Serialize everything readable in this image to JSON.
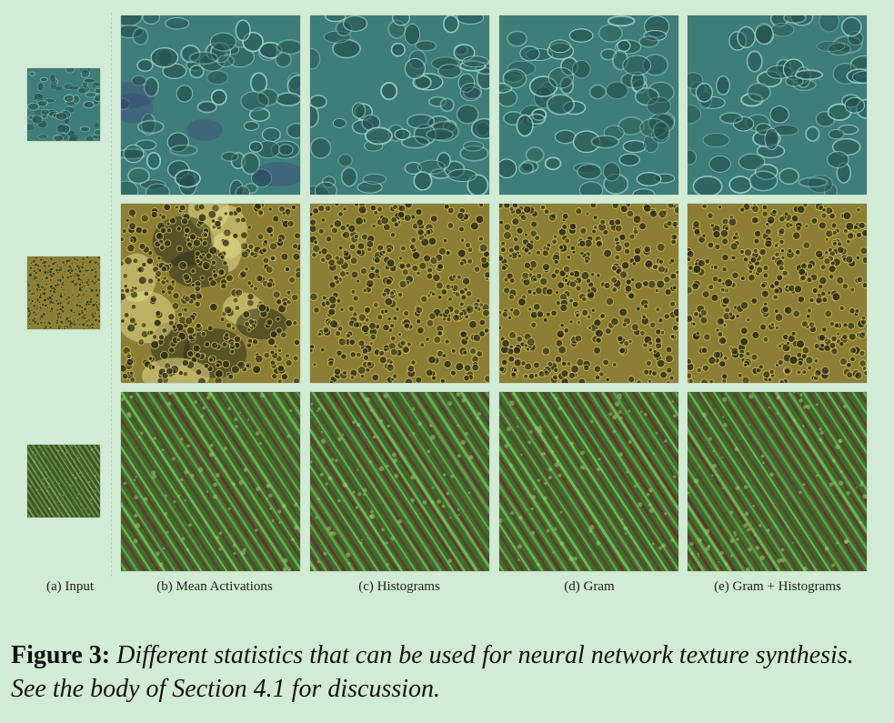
{
  "figure": {
    "columns": [
      {
        "id": "a",
        "label": "(a) Input"
      },
      {
        "id": "b",
        "label": "(b) Mean Activations"
      },
      {
        "id": "c",
        "label": "(c) Histograms"
      },
      {
        "id": "d",
        "label": "(d) Gram"
      },
      {
        "id": "e",
        "label": "(e) Gram + Histograms"
      }
    ],
    "rows": [
      {
        "texture": "water-caustics",
        "colors": {
          "base": "#3f7e78",
          "dark": "#24504f",
          "light": "#a9e2dc"
        }
      },
      {
        "texture": "yellow-cells",
        "colors": {
          "base": "#8c7f35",
          "dark": "#2c2c1c",
          "light": "#d7c55a"
        }
      },
      {
        "texture": "green-red-diagonal",
        "colors": {
          "base": "#3f6b2c",
          "dark": "#6b2b33",
          "light": "#7cc05a"
        }
      }
    ]
  },
  "caption": {
    "lead": "Figure 3:",
    "text": "Different statistics that can be used for neural network texture synthesis. See the body of Section 4.1 for discussion."
  }
}
